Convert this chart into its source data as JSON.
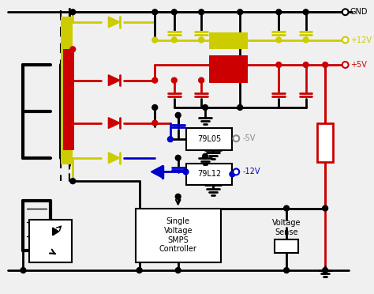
{
  "bg_color": "#f0f0f0",
  "title": "",
  "colors": {
    "black": "#000000",
    "red": "#cc0000",
    "yellow": "#cccc00",
    "blue": "#0000cc",
    "gray": "#888888",
    "white": "#ffffff",
    "light_gray": "#d0d0d0"
  },
  "labels": {
    "gnd": "GND",
    "plus12v": "+12V",
    "plus5v": "+5V",
    "minus5v": "-5V",
    "minus12v": "-12V",
    "reg1": "79L05",
    "reg2": "79L12",
    "controller": "Single\nVoltage\nSMPS\nController",
    "vsense": "Voltage\nSense"
  }
}
